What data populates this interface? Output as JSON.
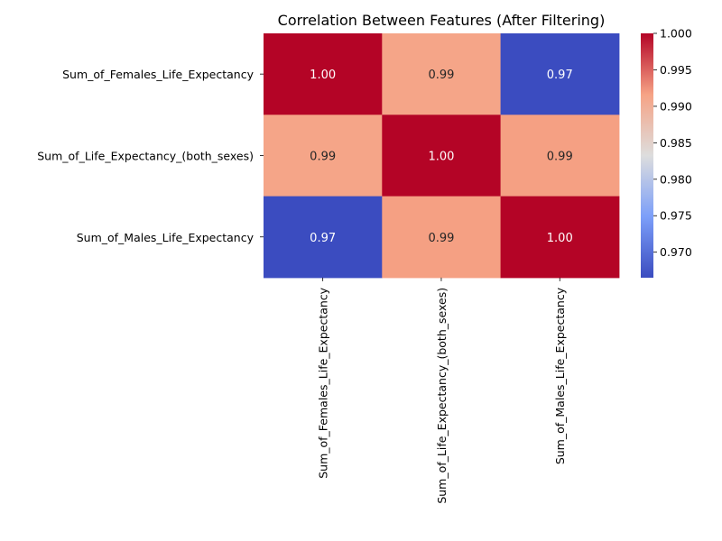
{
  "chart_data": {
    "type": "heatmap",
    "title": "Correlation Between Features (After Filtering)",
    "row_labels": [
      "Sum_of_Females_Life_Expectancy",
      "Sum_of_Life_Expectancy_(both_sexes)",
      "Sum_of_Males_Life_Expectancy"
    ],
    "col_labels": [
      "Sum_of_Females_Life_Expectancy",
      "Sum_of_Life_Expectancy_(both_sexes)",
      "Sum_of_Males_Life_Expectancy"
    ],
    "values": [
      [
        1.0,
        0.9913,
        0.9665
      ],
      [
        0.9913,
        1.0,
        0.9918
      ],
      [
        0.9665,
        0.9918,
        1.0
      ]
    ],
    "cell_labels": [
      [
        "1.00",
        "0.99",
        "0.97"
      ],
      [
        "0.99",
        "1.00",
        "0.99"
      ],
      [
        "0.97",
        "0.99",
        "1.00"
      ]
    ],
    "colormap": "coolwarm",
    "colorbar": {
      "min": 0.9665,
      "max": 1.0,
      "ticks": [
        0.97,
        0.975,
        0.98,
        0.985,
        0.99,
        0.995,
        1.0
      ],
      "tick_labels": [
        "0.970",
        "0.975",
        "0.980",
        "0.985",
        "0.990",
        "0.995",
        "1.000"
      ]
    },
    "colors": {
      "low": "#3b4cc0",
      "mid": "#dddddd",
      "high": "#b40426"
    }
  }
}
